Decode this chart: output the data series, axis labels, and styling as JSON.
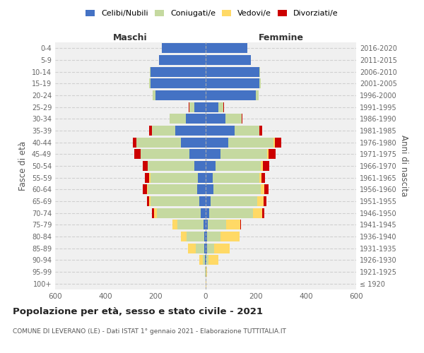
{
  "age_groups": [
    "100+",
    "95-99",
    "90-94",
    "85-89",
    "80-84",
    "75-79",
    "70-74",
    "65-69",
    "60-64",
    "55-59",
    "50-54",
    "45-49",
    "40-44",
    "35-39",
    "30-34",
    "25-29",
    "20-24",
    "15-19",
    "10-14",
    "5-9",
    "0-4"
  ],
  "birth_years": [
    "≤ 1920",
    "1921-1925",
    "1926-1930",
    "1931-1935",
    "1936-1940",
    "1941-1945",
    "1946-1950",
    "1951-1955",
    "1956-1960",
    "1961-1965",
    "1966-1970",
    "1971-1975",
    "1976-1980",
    "1981-1985",
    "1986-1990",
    "1991-1995",
    "1996-2000",
    "2001-2005",
    "2006-2010",
    "2011-2015",
    "2016-2020"
  ],
  "males": {
    "celibi": [
      0,
      0,
      2,
      5,
      5,
      8,
      20,
      25,
      35,
      30,
      45,
      65,
      100,
      120,
      80,
      45,
      200,
      220,
      220,
      185,
      175
    ],
    "coniugati": [
      0,
      2,
      8,
      35,
      70,
      105,
      175,
      195,
      195,
      190,
      185,
      195,
      175,
      95,
      65,
      20,
      10,
      5,
      2,
      0,
      0
    ],
    "vedovi": [
      0,
      2,
      15,
      30,
      25,
      20,
      10,
      5,
      5,
      5,
      0,
      0,
      0,
      0,
      0,
      0,
      0,
      0,
      0,
      0,
      0
    ],
    "divorziati": [
      0,
      0,
      0,
      0,
      0,
      0,
      10,
      10,
      15,
      18,
      20,
      25,
      15,
      10,
      0,
      2,
      0,
      0,
      0,
      0,
      0
    ]
  },
  "females": {
    "nubili": [
      0,
      0,
      2,
      5,
      5,
      8,
      15,
      20,
      30,
      28,
      40,
      60,
      90,
      115,
      80,
      50,
      200,
      215,
      215,
      180,
      165
    ],
    "coniugate": [
      0,
      2,
      8,
      30,
      55,
      75,
      175,
      185,
      190,
      185,
      180,
      185,
      180,
      100,
      65,
      20,
      10,
      5,
      2,
      0,
      0
    ],
    "vedove": [
      2,
      5,
      40,
      60,
      75,
      55,
      35,
      25,
      15,
      10,
      8,
      5,
      5,
      0,
      0,
      0,
      0,
      0,
      0,
      0,
      0
    ],
    "divorziate": [
      0,
      0,
      0,
      0,
      0,
      2,
      10,
      12,
      15,
      15,
      25,
      30,
      25,
      10,
      2,
      2,
      0,
      0,
      0,
      0,
      0
    ]
  },
  "colors": {
    "celibi": "#4472C4",
    "coniugati": "#c5d9a0",
    "vedovi": "#FFD966",
    "divorziati": "#CC0000"
  },
  "xlim": 600,
  "title": "Popolazione per età, sesso e stato civile - 2021",
  "subtitle": "COMUNE DI LEVERANO (LE) - Dati ISTAT 1° gennaio 2021 - Elaborazione TUTTITALIA.IT",
  "ylabel": "Fasce di età",
  "ylabel2": "Anni di nascita",
  "background_color": "#f0f0f0"
}
